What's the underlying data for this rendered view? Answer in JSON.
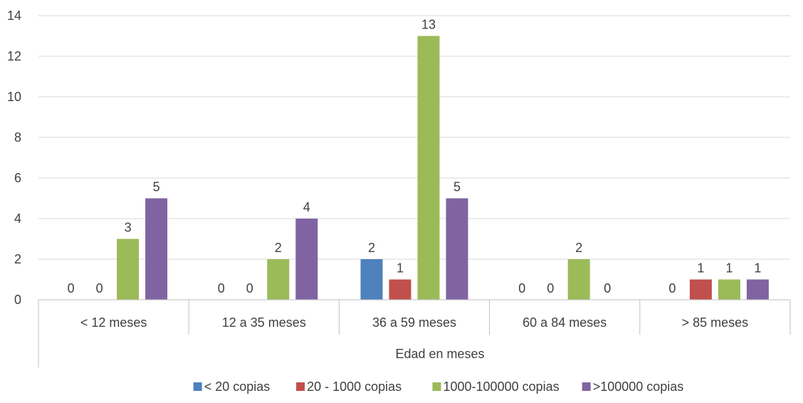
{
  "chart_data": {
    "type": "bar",
    "title": "",
    "xlabel": "Edad en meses",
    "ylabel": "",
    "ylim": [
      0,
      14
    ],
    "yticks": [
      0,
      2,
      4,
      6,
      8,
      10,
      12,
      14
    ],
    "grid": true,
    "legend_position": "bottom",
    "categories": [
      "< 12 meses",
      "12 a 35 meses",
      "36 a 59 meses",
      "60 a 84 meses",
      "> 85 meses"
    ],
    "series": [
      {
        "name": "< 20 copias",
        "color": "#4F81BD",
        "values": [
          0,
          0,
          2,
          0,
          0
        ]
      },
      {
        "name": "20 - 1000 copias",
        "color": "#C0504D",
        "values": [
          0,
          0,
          1,
          0,
          1
        ]
      },
      {
        "name": "1000-100000 copias",
        "color": "#9BBB59",
        "values": [
          3,
          2,
          13,
          2,
          1
        ]
      },
      {
        "name": ">100000 copias",
        "color": "#8064A2",
        "values": [
          5,
          4,
          5,
          0,
          1
        ]
      }
    ]
  }
}
